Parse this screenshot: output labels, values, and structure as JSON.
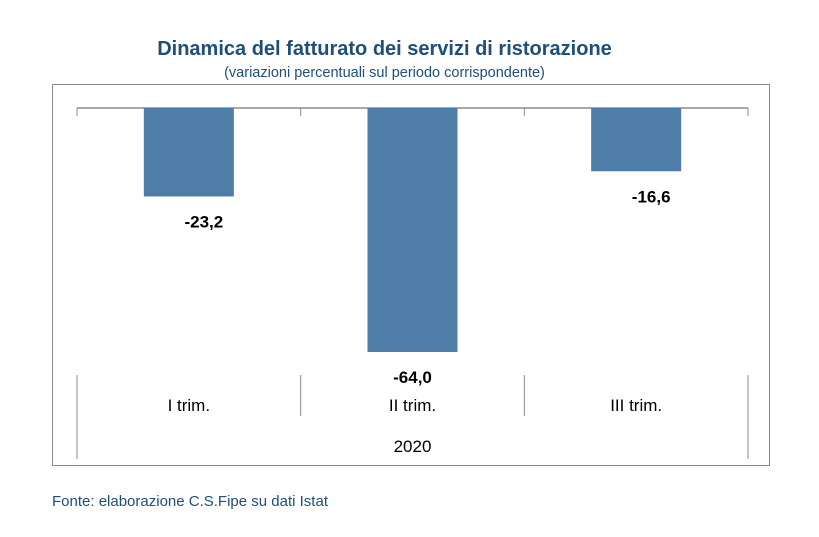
{
  "chart_data": {
    "type": "bar",
    "title": "Dinamica del fatturato dei servizi di ristorazione",
    "subtitle": "(variazioni percentuali sul periodo corrispondente)",
    "categories": [
      "I trim.",
      "II trim.",
      "III trim."
    ],
    "group_label": "2020",
    "values": [
      -23.2,
      -64.0,
      -16.6
    ],
    "data_labels": [
      "-23,2",
      "-64,0",
      "-16,6"
    ],
    "ylim": [
      -64.0,
      0
    ],
    "xlabel": "",
    "ylabel": "",
    "grid": false,
    "bar_color": "#4e7ea8"
  },
  "source": "Fonte: elaborazione C.S.Fipe su dati Istat"
}
